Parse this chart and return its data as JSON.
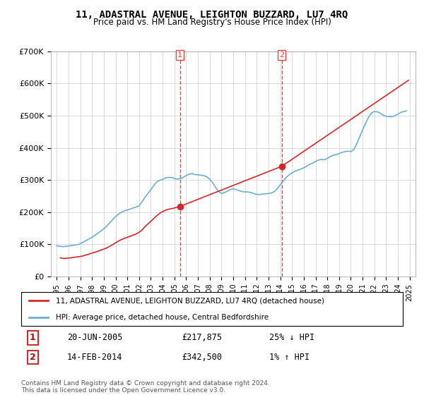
{
  "title": "11, ADASTRAL AVENUE, LEIGHTON BUZZARD, LU7 4RQ",
  "subtitle": "Price paid vs. HM Land Registry's House Price Index (HPI)",
  "ylabel_ticks": [
    "£0",
    "£100K",
    "£200K",
    "£300K",
    "£400K",
    "£500K",
    "£600K",
    "£700K"
  ],
  "ytick_values": [
    0,
    100000,
    200000,
    300000,
    400000,
    500000,
    600000,
    700000
  ],
  "ylim": [
    0,
    700000
  ],
  "xlabel_years": [
    "1995",
    "1996",
    "1997",
    "1998",
    "1999",
    "2000",
    "2001",
    "2002",
    "2003",
    "2004",
    "2005",
    "2006",
    "2007",
    "2008",
    "2009",
    "2010",
    "2011",
    "2012",
    "2013",
    "2014",
    "2015",
    "2016",
    "2017",
    "2018",
    "2019",
    "2020",
    "2021",
    "2022",
    "2023",
    "2024",
    "2025"
  ],
  "hpi_color": "#6baed6",
  "price_color": "#d62728",
  "vline_color": "#e84444",
  "marker1_date": 2005.47,
  "marker2_date": 2014.12,
  "marker1_price": 217875,
  "marker2_price": 342500,
  "legend_label1": "11, ADASTRAL AVENUE, LEIGHTON BUZZARD, LU7 4RQ (detached house)",
  "legend_label2": "HPI: Average price, detached house, Central Bedfordshire",
  "table_row1": [
    "1",
    "20-JUN-2005",
    "£217,875",
    "25% ↓ HPI"
  ],
  "table_row2": [
    "2",
    "14-FEB-2014",
    "£342,500",
    "1% ↑ HPI"
  ],
  "footnote": "Contains HM Land Registry data © Crown copyright and database right 2024.\nThis data is licensed under the Open Government Licence v3.0.",
  "bg_color": "#ffffff",
  "grid_color": "#cccccc",
  "hpi_years": [
    1995.0,
    1995.25,
    1995.5,
    1995.75,
    1996.0,
    1996.25,
    1996.5,
    1996.75,
    1997.0,
    1997.25,
    1997.5,
    1997.75,
    1998.0,
    1998.25,
    1998.5,
    1998.75,
    1999.0,
    1999.25,
    1999.5,
    1999.75,
    2000.0,
    2000.25,
    2000.5,
    2000.75,
    2001.0,
    2001.25,
    2001.5,
    2001.75,
    2002.0,
    2002.25,
    2002.5,
    2002.75,
    2003.0,
    2003.25,
    2003.5,
    2003.75,
    2004.0,
    2004.25,
    2004.5,
    2004.75,
    2005.0,
    2005.25,
    2005.5,
    2005.75,
    2006.0,
    2006.25,
    2006.5,
    2006.75,
    2007.0,
    2007.25,
    2007.5,
    2007.75,
    2008.0,
    2008.25,
    2008.5,
    2008.75,
    2009.0,
    2009.25,
    2009.5,
    2009.75,
    2010.0,
    2010.25,
    2010.5,
    2010.75,
    2011.0,
    2011.25,
    2011.5,
    2011.75,
    2012.0,
    2012.25,
    2012.5,
    2012.75,
    2013.0,
    2013.25,
    2013.5,
    2013.75,
    2014.0,
    2014.25,
    2014.5,
    2014.75,
    2015.0,
    2015.25,
    2015.5,
    2015.75,
    2016.0,
    2016.25,
    2016.5,
    2016.75,
    2017.0,
    2017.25,
    2017.5,
    2017.75,
    2018.0,
    2018.25,
    2018.5,
    2018.75,
    2019.0,
    2019.25,
    2019.5,
    2019.75,
    2020.0,
    2020.25,
    2020.5,
    2020.75,
    2021.0,
    2021.25,
    2021.5,
    2021.75,
    2022.0,
    2022.25,
    2022.5,
    2022.75,
    2023.0,
    2023.25,
    2023.5,
    2023.75,
    2024.0,
    2024.25,
    2024.5,
    2024.75
  ],
  "hpi_values": [
    95000,
    94000,
    93000,
    93500,
    95000,
    96000,
    97500,
    99000,
    102000,
    107000,
    112000,
    117000,
    122000,
    128000,
    135000,
    141000,
    148000,
    157000,
    167000,
    177000,
    186000,
    194000,
    200000,
    204000,
    207000,
    210000,
    213000,
    216000,
    220000,
    232000,
    246000,
    258000,
    270000,
    283000,
    294000,
    299000,
    302000,
    307000,
    308000,
    308000,
    305000,
    303000,
    304000,
    308000,
    314000,
    318000,
    320000,
    317000,
    316000,
    315000,
    314000,
    310000,
    303000,
    292000,
    277000,
    265000,
    258000,
    261000,
    265000,
    270000,
    273000,
    270000,
    267000,
    264000,
    263000,
    263000,
    261000,
    258000,
    255000,
    255000,
    256000,
    257000,
    258000,
    260000,
    264000,
    273000,
    285000,
    297000,
    308000,
    316000,
    322000,
    327000,
    331000,
    334000,
    338000,
    343000,
    349000,
    352000,
    358000,
    362000,
    364000,
    363000,
    367000,
    373000,
    377000,
    379000,
    382000,
    386000,
    388000,
    390000,
    388000,
    395000,
    412000,
    434000,
    456000,
    476000,
    495000,
    508000,
    513000,
    512000,
    508000,
    502000,
    498000,
    497000,
    497000,
    500000,
    505000,
    510000,
    513000,
    515000
  ],
  "price_years": [
    1995.3,
    1995.6,
    1995.9,
    1996.2,
    1996.5,
    1996.8,
    1997.1,
    1997.4,
    1997.7,
    1998.0,
    1998.3,
    1998.6,
    1998.9,
    1999.2,
    1999.5,
    1999.8,
    2000.1,
    2000.4,
    2000.7,
    2001.0,
    2001.3,
    2001.6,
    2001.9,
    2002.2,
    2002.5,
    2002.8,
    2003.1,
    2003.4,
    2003.7,
    2004.0,
    2004.3,
    2004.6,
    2004.9,
    2005.47,
    2014.12,
    2024.9
  ],
  "price_values": [
    58000,
    56000,
    57000,
    58000,
    60000,
    61000,
    63000,
    66000,
    69000,
    73000,
    76000,
    80000,
    84000,
    88000,
    94000,
    100000,
    107000,
    113000,
    118000,
    122000,
    126000,
    130000,
    135000,
    143000,
    155000,
    165000,
    175000,
    186000,
    195000,
    202000,
    207000,
    210000,
    212000,
    217875,
    342500,
    610000
  ]
}
